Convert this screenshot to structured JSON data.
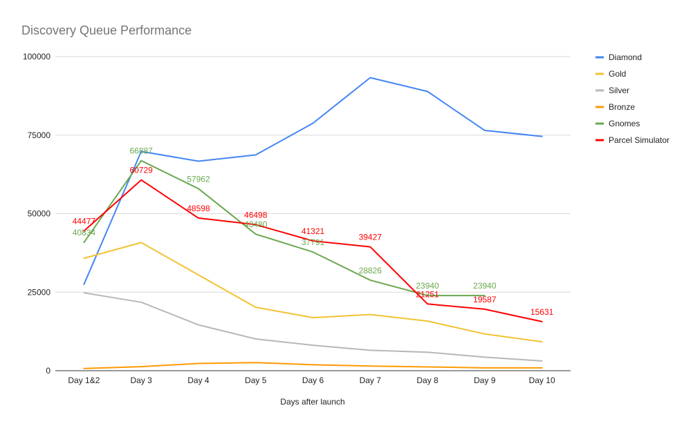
{
  "chart_data": {
    "type": "line",
    "title": "Discovery Queue Performance",
    "xlabel": "Days after launch",
    "ylabel": "",
    "ylim": [
      0,
      100000
    ],
    "yticks": [
      0,
      25000,
      50000,
      75000,
      100000
    ],
    "y_tick_labels": [
      "0",
      "25000",
      "50000",
      "75000",
      "100000"
    ],
    "grid": true,
    "legend_position": "right",
    "categories": [
      "Day 1&2",
      "Day 3",
      "Day 4",
      "Day 5",
      "Day 6",
      "Day 7",
      "Day 8",
      "Day 9",
      "Day 10"
    ],
    "series": [
      {
        "name": "Diamond",
        "color": "#4285f4",
        "values": [
          27500,
          69800,
          66700,
          68700,
          78800,
          93300,
          88900,
          76500,
          74600
        ],
        "data_labels": [
          null,
          null,
          null,
          null,
          null,
          null,
          null,
          null,
          null
        ]
      },
      {
        "name": "Gold",
        "color": "#f1c232",
        "values": [
          35800,
          40800,
          30500,
          20200,
          16900,
          17900,
          15800,
          11700,
          9200
        ],
        "data_labels": [
          null,
          null,
          null,
          null,
          null,
          null,
          null,
          null,
          null
        ]
      },
      {
        "name": "Silver",
        "color": "#b7b7b7",
        "values": [
          24800,
          21800,
          14600,
          10100,
          8100,
          6500,
          5900,
          4300,
          3100
        ],
        "data_labels": [
          null,
          null,
          null,
          null,
          null,
          null,
          null,
          null,
          null
        ]
      },
      {
        "name": "Bronze",
        "color": "#ff9900",
        "values": [
          700,
          1300,
          2300,
          2600,
          1900,
          1500,
          1200,
          900,
          900
        ],
        "data_labels": [
          null,
          null,
          null,
          null,
          null,
          null,
          null,
          null,
          null
        ]
      },
      {
        "name": "Gnomes",
        "color": "#6aa84f",
        "values": [
          40834,
          66887,
          57962,
          43480,
          37791,
          28826,
          23940,
          23940,
          null
        ],
        "data_labels": [
          "40834",
          "66887",
          "57962",
          "43480",
          "37791",
          "28826",
          "23940",
          "23940",
          null
        ]
      },
      {
        "name": "Parcel Simulator",
        "color": "#ff0000",
        "values": [
          44477,
          60729,
          48598,
          46498,
          41321,
          39427,
          21251,
          19587,
          15631
        ],
        "data_labels": [
          "44477",
          "60729",
          "48598",
          "46498",
          "41321",
          "39427",
          "21251",
          "19587",
          "15631"
        ]
      }
    ]
  }
}
